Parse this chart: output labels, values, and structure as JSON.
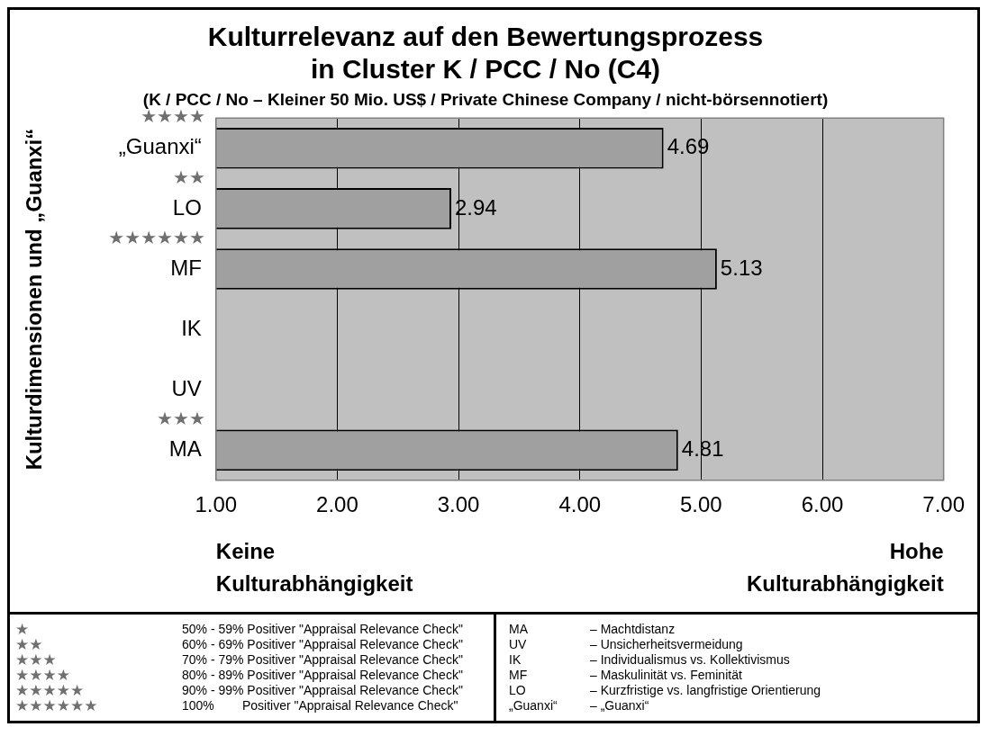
{
  "chart_data": {
    "type": "bar",
    "orientation": "horizontal",
    "title": "Kulturrelevanz auf den Bewertungsprozess\nin Cluster K / PCC / No (C4)",
    "subtitle": "(K / PCC / No – Kleiner 50 Mio. US$ / Private Chinese Company / nicht-börsennotiert)",
    "ylabel": "Kulturdimensionen und „Guanxi“",
    "categories": [
      "„Guanxi“",
      "LO",
      "MF",
      "IK",
      "UV",
      "MA"
    ],
    "values": [
      4.69,
      2.94,
      5.13,
      null,
      null,
      4.81
    ],
    "color": "#a0a0a0",
    "xlim": [
      1,
      7
    ],
    "xticks": [
      {
        "value": 1,
        "label": "1.00"
      },
      {
        "value": 2,
        "label": "2.00"
      },
      {
        "value": 3,
        "label": "3.00"
      },
      {
        "value": 4,
        "label": "4.00"
      },
      {
        "value": 5,
        "label": "5.00"
      },
      {
        "value": 6,
        "label": "6.00"
      },
      {
        "value": 7,
        "label": "7.00"
      }
    ],
    "grid": "x",
    "data_labels": true,
    "legend": false,
    "annotations": [
      "★★★★",
      "★★",
      "★★★★★★",
      "★★★",
      "Keine Kulturabhängigkeit",
      "Hohe Kulturabhängigkeit",
      "★ 50% - 59% Positiver \"Appraisal Relevance Check\"",
      "★★ 60% - 69% Positiver \"Appraisal Relevance Check\"",
      "★★★ 70% - 79% Positiver \"Appraisal Relevance Check\"",
      "★★★★ 80% - 89% Positiver \"Appraisal Relevance Check\"",
      "★★★★★ 90% - 99% Positiver \"Appraisal Relevance Check\"",
      "★★★★★★ 100%        Positiver \"Appraisal Relevance Check\"",
      "MA – Machtdistanz",
      "UV – Unsicherheitsvermeidung",
      "IK – Individualismus vs. Kollektivismus",
      "MF – Maskulinität vs. Feminität",
      "LO – Kurzfristige vs. langfristige Orientierung",
      "„Guanxi“ – „Guanxi“"
    ]
  }
}
